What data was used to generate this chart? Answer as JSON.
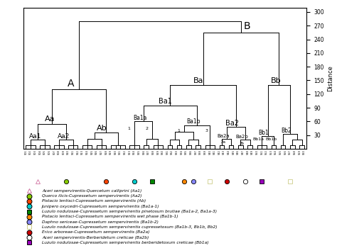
{
  "ylabel": "Distance",
  "yticks": [
    30,
    60,
    90,
    120,
    150,
    180,
    210,
    240,
    270,
    300
  ],
  "ylim": [
    0,
    310
  ],
  "legend_items": [
    {
      "marker": "^",
      "color": "#d070a0",
      "mfc": "none",
      "mec": "#d070a0",
      "text": "Aceri sempervirentis-Quercetum calliprini (Aa1)"
    },
    {
      "marker": "o",
      "color": "#88cc00",
      "mfc": "#88cc00",
      "mec": "#000000",
      "text": "Querco ilicis-Cupressetum sempervirentis (Aa2)"
    },
    {
      "marker": "o",
      "color": "#ff4400",
      "mfc": "#ff4400",
      "mec": "#000000",
      "text": "Pistacio lentisci-Cupressetum sempervirentis (Ab)"
    },
    {
      "marker": "o",
      "color": "#00cccc",
      "mfc": "#00cccc",
      "mec": "#000000",
      "text": "Junipero oxycedri-Cupressetum sempervirentis (Ba1a-1)"
    },
    {
      "marker": "s",
      "color": "#008800",
      "mfc": "#008800",
      "mec": "#000000",
      "text": "Luzulo nodulosae-Cupressetum sempervirentis pinetosum brutiae (Ba1a-2, Ba1a-3)"
    },
    {
      "marker": "o",
      "color": "#ff8800",
      "mfc": "#ff8800",
      "mec": "#000000",
      "text": "Pistacio lentisci-Cupressetum sempervirentis wet phase (Ba1b-1)"
    },
    {
      "marker": "o",
      "color": "#8888ff",
      "mfc": "#8888ff",
      "mec": "#000000",
      "text": "Daphno sericeae-Cupressetum sempervirentis (Ba1b-2)"
    },
    {
      "marker": "s",
      "color": "#cccc88",
      "mfc": "none",
      "mec": "#cccc88",
      "text": "Luzulo nodulosae-Cupressetum sempervirentis cupressetosum (Ba1b-3, Bb1b, Bb2)"
    },
    {
      "marker": "o",
      "color": "#cc0000",
      "mfc": "#cc0000",
      "mec": "#000000",
      "text": "Erico arboreae-Cupressetum sempervirentis (Ba2a)"
    },
    {
      "marker": "o",
      "color": "#000000",
      "mfc": "none",
      "mec": "#000000",
      "text": "Aceri sempervirentis-Berberidetum creticae (Ba2b)"
    },
    {
      "marker": "s",
      "color": "#9900bb",
      "mfc": "#9900bb",
      "mec": "#000000",
      "text": "Luzulo nodulosae-Cupressetum sempervirentis berberidetoxum creticae (Bb1a)"
    }
  ]
}
